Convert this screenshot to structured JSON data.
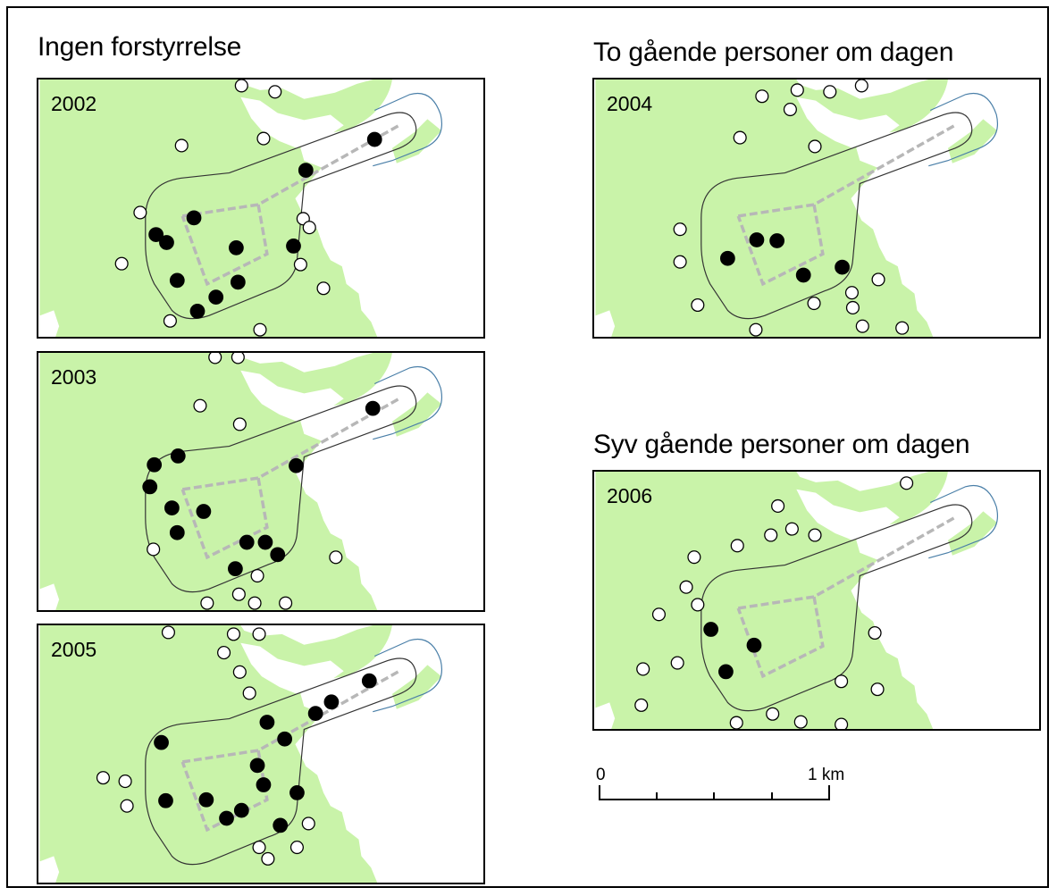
{
  "headings": {
    "left": "Ingen forstyrrelse",
    "top_right": "To gående personer om dagen",
    "bottom_right": "Syv gående personer om dagen"
  },
  "colors": {
    "land": "#c9f3a9",
    "water": "#ffffff",
    "nest_active": "#000000",
    "nest_inactive": "#ffffff",
    "buffer_line": "#333333",
    "outer_buffer_line": "#4a7fa8",
    "path_line": "#b7b7b7"
  },
  "icons": {
    "active_nest": "filled-circle",
    "inactive_nest": "hollow-circle"
  },
  "panels": [
    {
      "id": "2002",
      "year": "2002",
      "group": "Ingen forstyrrelse",
      "active": [
        [
          423,
          157
        ],
        [
          345,
          192
        ],
        [
          218,
          246
        ],
        [
          175,
          265
        ],
        [
          187,
          274
        ],
        [
          266,
          280
        ],
        [
          331,
          278
        ],
        [
          199,
          317
        ],
        [
          268,
          319
        ],
        [
          243,
          336
        ],
        [
          222,
          352
        ]
      ],
      "inactive": [
        [
          272,
          96
        ],
        [
          310,
          103
        ],
        [
          204,
          164
        ],
        [
          297,
          156
        ],
        [
          157,
          240
        ],
        [
          342,
          247
        ],
        [
          349,
          257
        ],
        [
          136,
          298
        ],
        [
          339,
          299
        ],
        [
          365,
          326
        ],
        [
          191,
          363
        ],
        [
          293,
          373
        ]
      ]
    },
    {
      "id": "2003",
      "year": "2003",
      "group": "Ingen forstyrrelse",
      "active": [
        [
          421,
          458
        ],
        [
          173,
          522
        ],
        [
          200,
          512
        ],
        [
          334,
          523
        ],
        [
          168,
          547
        ],
        [
          193,
          571
        ],
        [
          229,
          575
        ],
        [
          199,
          599
        ],
        [
          278,
          610
        ],
        [
          299,
          610
        ],
        [
          313,
          624
        ],
        [
          265,
          640
        ]
      ],
      "inactive": [
        [
          242,
          400
        ],
        [
          268,
          400
        ],
        [
          225,
          455
        ],
        [
          270,
          476
        ],
        [
          172,
          618
        ],
        [
          379,
          627
        ],
        [
          290,
          648
        ],
        [
          233,
          679
        ],
        [
          269,
          669
        ],
        [
          287,
          679
        ],
        [
          322,
          679
        ]
      ]
    },
    {
      "id": "2005",
      "year": "2005",
      "group": "Ingen forstyrrelse",
      "active": [
        [
          417,
          763
        ],
        [
          374,
          787
        ],
        [
          356,
          800
        ],
        [
          301,
          810
        ],
        [
          321,
          829
        ],
        [
          181,
          833
        ],
        [
          290,
          859
        ],
        [
          297,
          881
        ],
        [
          335,
          890
        ],
        [
          186,
          899
        ],
        [
          232,
          898
        ],
        [
          272,
          910
        ],
        [
          255,
          919
        ],
        [
          316,
          927
        ]
      ],
      "inactive": [
        [
          189,
          708
        ],
        [
          263,
          710
        ],
        [
          292,
          710
        ],
        [
          252,
          731
        ],
        [
          270,
          753
        ],
        [
          281,
          777
        ],
        [
          115,
          873
        ],
        [
          140,
          877
        ],
        [
          142,
          905
        ],
        [
          348,
          925
        ],
        [
          292,
          952
        ],
        [
          335,
          952
        ],
        [
          302,
          965
        ]
      ]
    },
    {
      "id": "2004",
      "year": "2004",
      "group": "To gående personer om dagen",
      "active": [
        [
          848,
          271
        ],
        [
          871,
          272
        ],
        [
          815,
          292
        ],
        [
          945,
          302
        ],
        [
          901,
          311
        ]
      ],
      "inactive": [
        [
          854,
          108
        ],
        [
          894,
          101
        ],
        [
          931,
          103
        ],
        [
          967,
          96
        ],
        [
          886,
          123
        ],
        [
          829,
          155
        ],
        [
          914,
          165
        ],
        [
          761,
          259
        ],
        [
          761,
          296
        ],
        [
          986,
          316
        ],
        [
          956,
          331
        ],
        [
          957,
          348
        ],
        [
          781,
          345
        ],
        [
          913,
          343
        ],
        [
          968,
          369
        ],
        [
          847,
          373
        ],
        [
          1013,
          371
        ]
      ]
    },
    {
      "id": "2006",
      "year": "2006",
      "group": "Syv gående personer om dagen",
      "active": [
        [
          796,
          707
        ],
        [
          845,
          725
        ],
        [
          813,
          755
        ]
      ],
      "inactive": [
        [
          1018,
          541
        ],
        [
          872,
          567
        ],
        [
          864,
          600
        ],
        [
          888,
          593
        ],
        [
          914,
          600
        ],
        [
          826,
          612
        ],
        [
          777,
          625
        ],
        [
          768,
          659
        ],
        [
          737,
          690
        ],
        [
          781,
          679
        ],
        [
          758,
          745
        ],
        [
          719,
          752
        ],
        [
          982,
          711
        ],
        [
          944,
          766
        ],
        [
          985,
          775
        ],
        [
          717,
          793
        ],
        [
          866,
          803
        ],
        [
          898,
          812
        ],
        [
          825,
          813
        ],
        [
          944,
          815
        ]
      ]
    }
  ],
  "scale": {
    "label_start": "0",
    "label_end": "1 km"
  }
}
